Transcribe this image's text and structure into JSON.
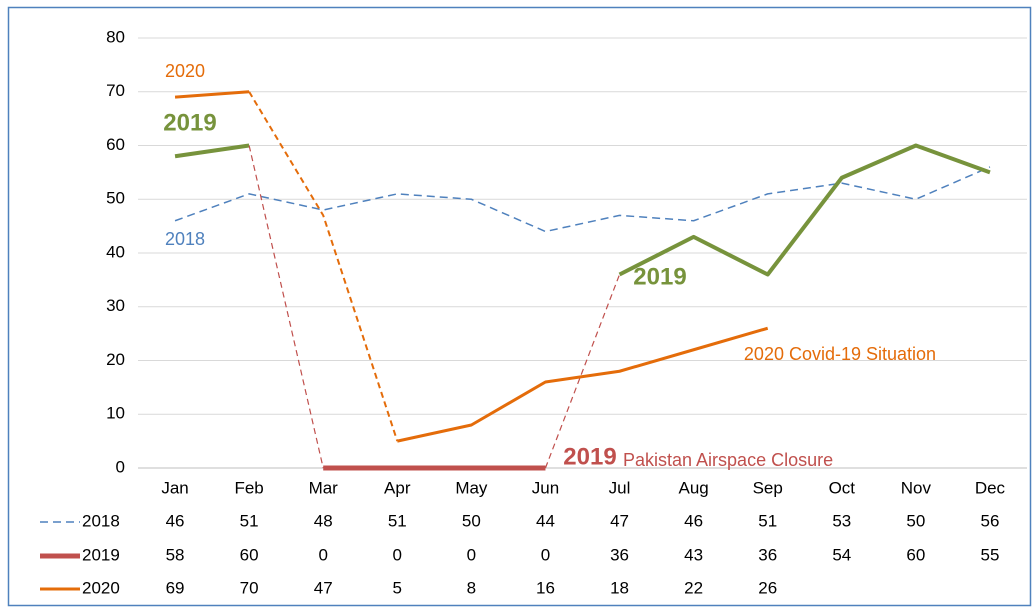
{
  "chart_data": {
    "type": "line",
    "categories": [
      "Jan",
      "Feb",
      "Mar",
      "Apr",
      "May",
      "Jun",
      "Jul",
      "Aug",
      "Sep",
      "Oct",
      "Nov",
      "Dec"
    ],
    "series": [
      {
        "name": "2018",
        "color": "#4f81bd",
        "values": [
          46,
          51,
          48,
          51,
          50,
          44,
          47,
          46,
          51,
          53,
          50,
          56
        ]
      },
      {
        "name": "2019",
        "color": "#c0504d",
        "line_color": "#77933c",
        "values": [
          58,
          60,
          0,
          0,
          0,
          0,
          36,
          43,
          36,
          54,
          60,
          55
        ]
      },
      {
        "name": "2020",
        "color": "#e46c0a",
        "values": [
          69,
          70,
          47,
          5,
          8,
          16,
          18,
          22,
          26,
          null,
          null,
          null
        ]
      }
    ],
    "ylim": [
      0,
      80
    ],
    "yticks": [
      0,
      10,
      20,
      30,
      40,
      50,
      60,
      70,
      80
    ],
    "grid": true,
    "annotations": [
      {
        "text": "2020",
        "color": "#e46c0a"
      },
      {
        "text": "2019",
        "color": "#77933c"
      },
      {
        "text": "2018",
        "color": "#4f81bd"
      },
      {
        "text": "2019",
        "color": "#77933c"
      },
      {
        "text": "2020 Covid-19 Situation",
        "color": "#e46c0a"
      },
      {
        "text": "2019",
        "color": "#c0504d"
      },
      {
        "text": "Pakistan Airspace Closure",
        "color": "#c0504d"
      }
    ]
  }
}
